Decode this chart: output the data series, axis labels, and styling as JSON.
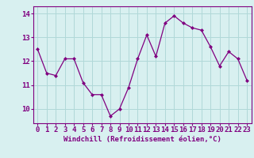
{
  "x": [
    0,
    1,
    2,
    3,
    4,
    5,
    6,
    7,
    8,
    9,
    10,
    11,
    12,
    13,
    14,
    15,
    16,
    17,
    18,
    19,
    20,
    21,
    22,
    23
  ],
  "y": [
    12.5,
    11.5,
    11.4,
    12.1,
    12.1,
    11.1,
    10.6,
    10.6,
    9.7,
    10.0,
    10.9,
    12.1,
    13.1,
    12.2,
    13.6,
    13.9,
    13.6,
    13.4,
    13.3,
    12.6,
    11.8,
    12.4,
    12.1,
    11.2
  ],
  "xlabel": "Windchill (Refroidissement éolien,°C)",
  "yticks": [
    10,
    11,
    12,
    13,
    14
  ],
  "xticks": [
    0,
    1,
    2,
    3,
    4,
    5,
    6,
    7,
    8,
    9,
    10,
    11,
    12,
    13,
    14,
    15,
    16,
    17,
    18,
    19,
    20,
    21,
    22,
    23
  ],
  "ylim": [
    9.4,
    14.3
  ],
  "xlim": [
    -0.5,
    23.5
  ],
  "line_color": "#800080",
  "marker": "D",
  "marker_size": 2,
  "bg_color": "#d8f0f0",
  "grid_color": "#b0d8d8",
  "axis_label_color": "#800080",
  "tick_color": "#800080",
  "spine_color": "#800080",
  "xlabel_fontsize": 6.5,
  "tick_fontsize": 6.5
}
